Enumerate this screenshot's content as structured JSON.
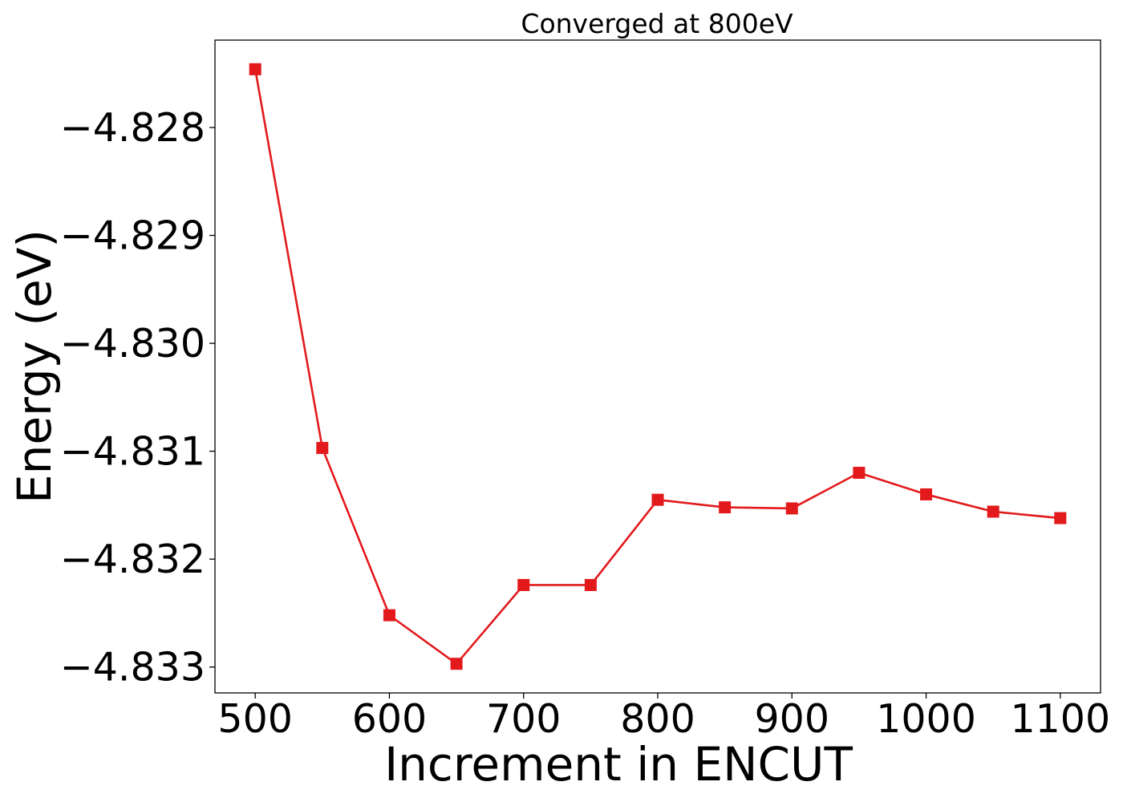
{
  "chart_data": {
    "type": "line",
    "title": "Converged at 800eV",
    "xlabel": "Increment in ENCUT",
    "ylabel": "Energy (eV)",
    "x": [
      500,
      550,
      600,
      650,
      700,
      750,
      800,
      850,
      900,
      950,
      1000,
      1050,
      1100
    ],
    "series": [
      {
        "color": "#e31a1c",
        "marker": "square",
        "values": [
          -4.82746,
          -4.83097,
          -4.83252,
          -4.83297,
          -4.83224,
          -4.83224,
          -4.83145,
          -4.83152,
          -4.83153,
          -4.8312,
          -4.8314,
          -4.83156,
          -4.83162
        ]
      }
    ],
    "xlim": [
      470,
      1130
    ],
    "ylim": [
      -4.83324,
      -4.82719
    ],
    "xticks": [
      500,
      600,
      700,
      800,
      900,
      1000,
      1100
    ],
    "xtick_labels": [
      "500",
      "600",
      "700",
      "800",
      "900",
      "1000",
      "1100"
    ],
    "yticks": [
      -4.828,
      -4.829,
      -4.83,
      -4.831,
      -4.832,
      -4.833
    ],
    "ytick_labels": [
      "−4.828",
      "−4.829",
      "−4.830",
      "−4.831",
      "−4.832",
      "−4.833"
    ],
    "grid": false,
    "legend": "none"
  }
}
